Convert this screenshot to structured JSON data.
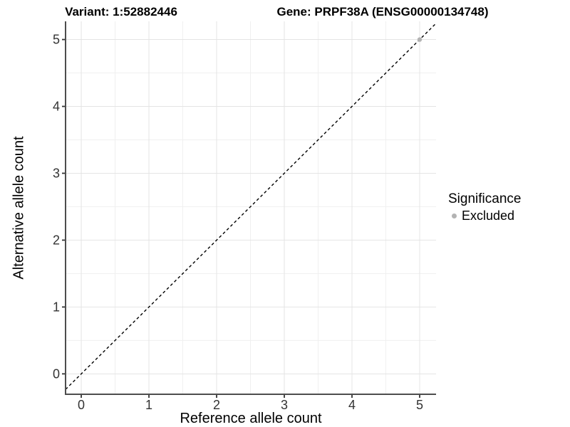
{
  "chart_data": {
    "type": "scatter",
    "title_left": "Variant: 1:52882446",
    "title_right": "Gene: PRPF38A (ENSG00000134748)",
    "xlabel": "Reference allele count",
    "ylabel": "Alternative allele count",
    "x_ticks": [
      0,
      1,
      2,
      3,
      4,
      5
    ],
    "y_ticks": [
      0,
      1,
      2,
      3,
      4,
      5
    ],
    "xlim": [
      -0.232,
      5.242
    ],
    "ylim": [
      -0.305,
      5.272
    ],
    "grid": {
      "major": true,
      "minor": true
    },
    "reference_line": {
      "slope": 1,
      "intercept": 0,
      "style": "dashed",
      "color": "#000000"
    },
    "series": [
      {
        "name": "Excluded",
        "color": "#b3b3b3",
        "points": [
          {
            "x": 5,
            "y": 5
          }
        ]
      }
    ],
    "legend": {
      "title": "Significance",
      "position": "right",
      "items": [
        {
          "label": "Excluded",
          "color": "#b3b3b3"
        }
      ]
    }
  }
}
